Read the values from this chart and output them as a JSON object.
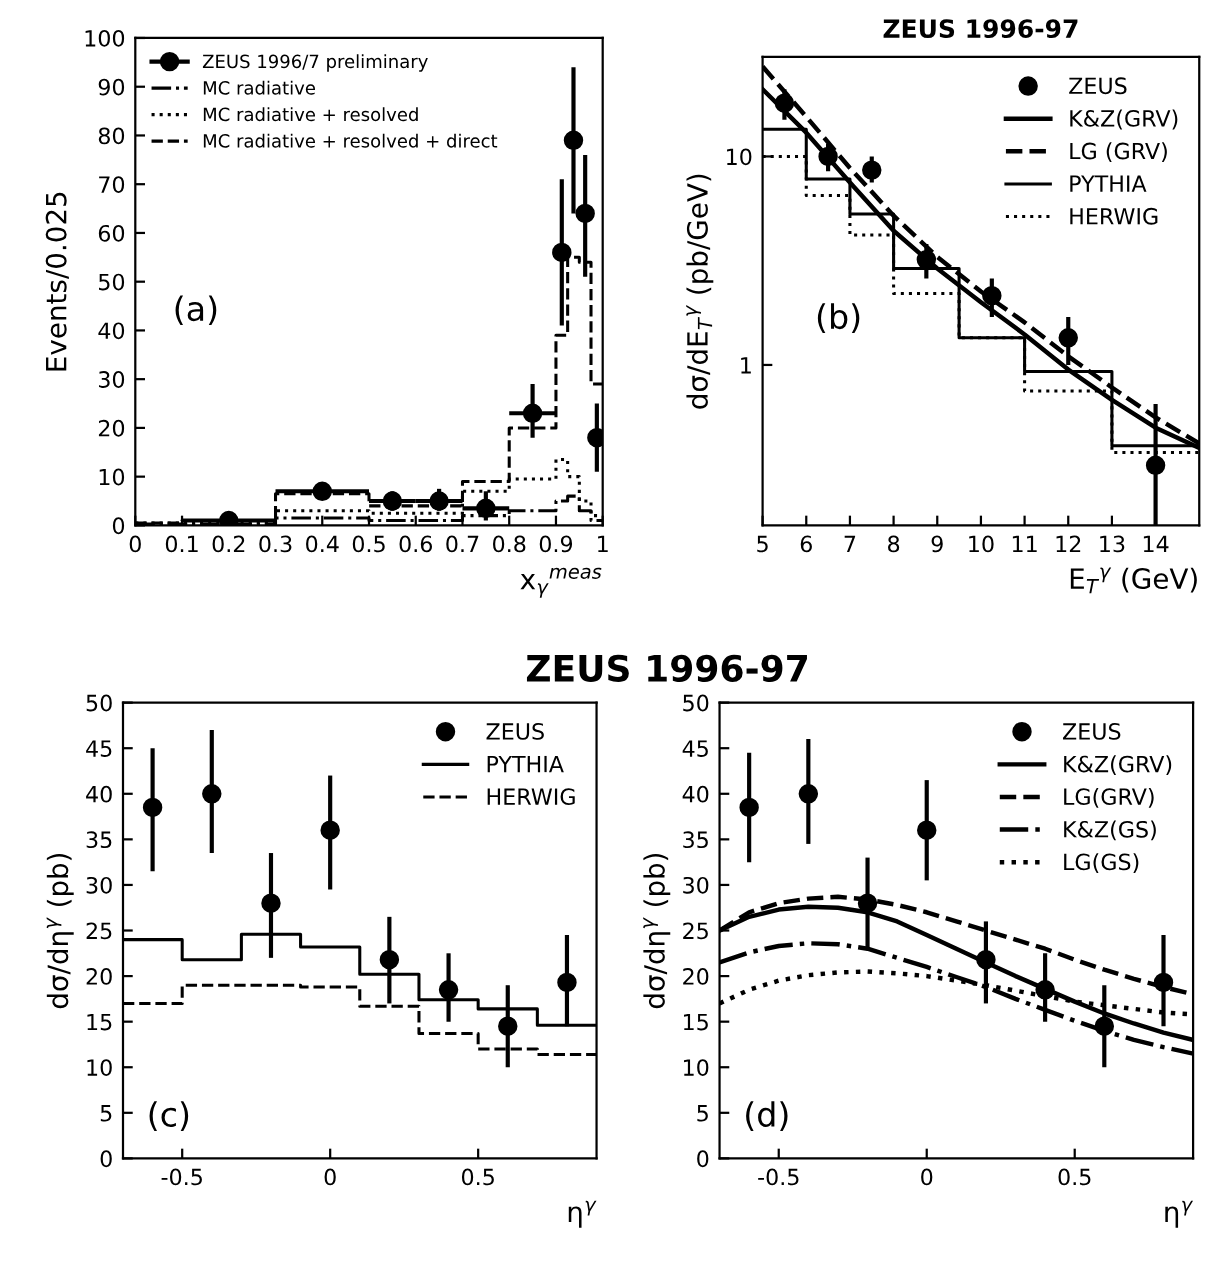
{
  "chart_data": [
    {
      "type": "step",
      "xlabel": "x$_{γ}$$^{meas}$",
      "ylabel": "Events/0.025",
      "xlim": [
        0,
        1
      ],
      "ylim": [
        0,
        100
      ],
      "xticks": [
        0,
        0.1,
        0.2,
        0.3,
        0.4,
        0.5,
        0.6,
        0.7,
        0.8,
        0.9,
        1
      ],
      "yticks": [
        0,
        10,
        20,
        30,
        40,
        50,
        60,
        70,
        80,
        90,
        100
      ],
      "legend": "top left",
      "annotations": [
        "(a)"
      ],
      "series": [
        {
          "name": "ZEUS 1996/7 preliminary",
          "type": "scatter",
          "marker": "circle",
          "color": "#000000",
          "x": [
            0.2,
            0.4,
            0.55,
            0.65,
            0.75,
            0.85,
            0.9125,
            0.9375,
            0.9625,
            0.9875
          ],
          "values": [
            1,
            7,
            5,
            5,
            3.5,
            23,
            56,
            79,
            64,
            18
          ],
          "errors": [
            null,
            [
              6,
              8.5
            ],
            [
              3,
              7
            ],
            [
              3,
              7.5
            ],
            [
              1,
              7
            ],
            [
              18,
              29
            ],
            [
              41,
              71
            ],
            [
              64,
              94
            ],
            [
              51,
              76
            ],
            [
              11,
              25
            ]
          ],
          "xerrors": [
            0.1,
            0.1,
            0.05,
            0.05,
            0.05,
            0.05,
            0.0125,
            0.0125,
            0.0125,
            0.0125
          ]
        },
        {
          "name": "MC radiative",
          "line_style": "dashdot",
          "color": "#000000",
          "x": [
            0,
            0.1,
            0.3,
            0.5,
            0.7,
            0.8,
            0.9,
            0.925,
            0.95,
            0.975,
            1
          ],
          "values": [
            0.3,
            0.3,
            1.5,
            1,
            2,
            3,
            5,
            6,
            3,
            1,
            1
          ]
        },
        {
          "name": "MC radiative + resolved",
          "line_style": "dotted",
          "color": "#000000",
          "x": [
            0,
            0.1,
            0.3,
            0.5,
            0.7,
            0.8,
            0.9,
            0.925,
            0.95,
            0.975,
            1
          ],
          "values": [
            0.5,
            0.5,
            3,
            2.5,
            7,
            9.5,
            13.5,
            10,
            5,
            2,
            2
          ]
        },
        {
          "name": "MC radiative + resolved + direct",
          "line_style": "dashed",
          "color": "#000000",
          "x": [
            0,
            0.1,
            0.3,
            0.5,
            0.7,
            0.8,
            0.9,
            0.925,
            0.95,
            0.975,
            1
          ],
          "values": [
            0.5,
            1,
            6.5,
            4,
            9,
            20,
            39,
            55,
            54,
            29,
            29
          ]
        }
      ]
    },
    {
      "type": "line",
      "title": "ZEUS 1996-97",
      "xlabel": "E$_{T}$$^{γ}$ (GeV)",
      "ylabel": "dσ/dE$_{T}$$^{γ}$ (pb/GeV)",
      "log": "y",
      "xlim": [
        5,
        15
      ],
      "ylim": [
        0.17,
        30
      ],
      "xticks": [
        5,
        6,
        7,
        8,
        9,
        10,
        11,
        12,
        13,
        14
      ],
      "yticks": [
        1,
        10
      ],
      "legend": "top right",
      "annotations": [
        "(b)"
      ],
      "series": [
        {
          "name": "ZEUS",
          "type": "scatter",
          "marker": "circle",
          "color": "#000000",
          "x": [
            5.5,
            6.5,
            7.5,
            8.75,
            10.25,
            12,
            14
          ],
          "values": [
            18,
            10,
            8.6,
            3.2,
            2.15,
            1.35,
            0.33
          ],
          "errors": [
            [
              15,
              21
            ],
            [
              8.5,
              11.5
            ],
            [
              7.5,
              10
            ],
            [
              2.6,
              3.8
            ],
            [
              1.7,
              2.6
            ],
            [
              1.0,
              1.7
            ],
            [
              0.17,
              0.65
            ]
          ]
        },
        {
          "name": "K&Z(GRV)",
          "line_style": "solid",
          "color": "#000000",
          "x": [
            5,
            6,
            7,
            8,
            9,
            10,
            11,
            12,
            13,
            14,
            15
          ],
          "values": [
            21,
            13,
            7.5,
            4.4,
            2.9,
            2.0,
            1.4,
            0.95,
            0.68,
            0.5,
            0.4
          ]
        },
        {
          "name": "LG (GRV)",
          "line_style": "dashed",
          "color": "#000000",
          "x": [
            5,
            6,
            7,
            8,
            9,
            10,
            11,
            12,
            13,
            14,
            15
          ],
          "values": [
            27,
            15.5,
            8.8,
            5.2,
            3.3,
            2.25,
            1.6,
            1.1,
            0.78,
            0.56,
            0.42
          ]
        },
        {
          "name": "PYTHIA",
          "type": "step",
          "line_style": "solid",
          "color": "#000000",
          "x": [
            5,
            6,
            7,
            8,
            9.5,
            11,
            13,
            15
          ],
          "values": [
            13.5,
            7.8,
            5.3,
            2.9,
            1.35,
            0.93,
            0.41,
            0.41
          ]
        },
        {
          "name": "HERWIG",
          "type": "step",
          "line_style": "dotted",
          "color": "#000000",
          "x": [
            5,
            6,
            7,
            8,
            9.5,
            11,
            13,
            15
          ],
          "values": [
            10,
            6.5,
            4.2,
            2.2,
            1.35,
            0.75,
            0.38,
            0.38
          ]
        }
      ]
    },
    {
      "type": "step",
      "title": "ZEUS 1996-97",
      "xlabel": "η$^{γ}$",
      "ylabel": "dσ/dη$^{γ}$ (pb)",
      "xlim": [
        -0.7,
        0.9
      ],
      "ylim": [
        0,
        50
      ],
      "xticks": [
        -0.5,
        0,
        0.5
      ],
      "yticks": [
        0,
        5,
        10,
        15,
        20,
        25,
        30,
        35,
        40,
        45,
        50
      ],
      "legend": "top right",
      "annotations": [
        "(c)"
      ],
      "series": [
        {
          "name": "ZEUS",
          "type": "scatter",
          "marker": "circle",
          "color": "#000000",
          "x": [
            -0.6,
            -0.4,
            -0.2,
            0,
            0.2,
            0.4,
            0.6,
            0.8
          ],
          "values": [
            38.5,
            40,
            28,
            36,
            21.8,
            18.5,
            14.5,
            19.3
          ],
          "errors": [
            [
              31.5,
              45
            ],
            [
              33.5,
              47
            ],
            [
              22,
              33.5
            ],
            [
              29.5,
              42
            ],
            [
              17,
              26.5
            ],
            [
              15,
              22.5
            ],
            [
              10,
              19
            ],
            [
              14.5,
              24.5
            ]
          ]
        },
        {
          "name": "PYTHIA",
          "line_style": "solid",
          "color": "#000000",
          "x": [
            -0.7,
            -0.5,
            -0.3,
            -0.1,
            0.1,
            0.3,
            0.5,
            0.7,
            0.9
          ],
          "values": [
            24,
            21.8,
            24.6,
            23.2,
            20.2,
            17.4,
            16.4,
            14.6,
            14.6
          ]
        },
        {
          "name": "HERWIG",
          "line_style": "dashed",
          "color": "#000000",
          "x": [
            -0.7,
            -0.5,
            -0.3,
            -0.1,
            0.1,
            0.3,
            0.5,
            0.7,
            0.9
          ],
          "values": [
            17,
            19,
            19,
            18.8,
            16.7,
            13.7,
            12,
            11.4,
            11.4
          ]
        }
      ]
    },
    {
      "type": "line",
      "xlabel": "η$^{γ}$",
      "ylabel": "dσ/dη$^{γ}$ (pb)",
      "xlim": [
        -0.7,
        0.9
      ],
      "ylim": [
        0,
        50
      ],
      "xticks": [
        -0.5,
        0,
        0.5
      ],
      "yticks": [
        0,
        5,
        10,
        15,
        20,
        25,
        30,
        35,
        40,
        45,
        50
      ],
      "legend": "top right",
      "annotations": [
        "(d)"
      ],
      "series": [
        {
          "name": "ZEUS",
          "type": "scatter",
          "marker": "circle",
          "color": "#000000",
          "x": [
            -0.6,
            -0.4,
            -0.2,
            0,
            0.2,
            0.4,
            0.6,
            0.8
          ],
          "values": [
            38.5,
            40,
            28,
            36,
            21.8,
            18.5,
            14.5,
            19.3
          ],
          "errors": [
            [
              32.5,
              44.5
            ],
            [
              34.5,
              46
            ],
            [
              23,
              33
            ],
            [
              30.5,
              41.5
            ],
            [
              17,
              26
            ],
            [
              15,
              22.5
            ],
            [
              10,
              19
            ],
            [
              14.5,
              24.5
            ]
          ]
        },
        {
          "name": "K&Z(GRV)",
          "line_style": "solid",
          "color": "#000000",
          "x": [
            -0.7,
            -0.6,
            -0.5,
            -0.4,
            -0.3,
            -0.2,
            -0.1,
            0,
            0.1,
            0.2,
            0.3,
            0.4,
            0.5,
            0.6,
            0.7,
            0.8,
            0.9
          ],
          "values": [
            25,
            26.5,
            27.3,
            27.6,
            27.5,
            27,
            26,
            24.5,
            23,
            21.5,
            20,
            18.6,
            17.2,
            15.9,
            14.8,
            13.8,
            13
          ]
        },
        {
          "name": "LG(GRV)",
          "line_style": "dashed",
          "color": "#000000",
          "x": [
            -0.7,
            -0.6,
            -0.5,
            -0.4,
            -0.3,
            -0.2,
            -0.1,
            0,
            0.1,
            0.2,
            0.3,
            0.4,
            0.5,
            0.6,
            0.7,
            0.8,
            0.9
          ],
          "values": [
            25,
            27,
            28,
            28.5,
            28.7,
            28.4,
            27.8,
            27,
            26,
            25,
            24,
            23,
            21.8,
            20.7,
            19.7,
            18.8,
            18
          ]
        },
        {
          "name": "K&Z(GS)",
          "line_style": "dashdot",
          "color": "#000000",
          "x": [
            -0.7,
            -0.6,
            -0.5,
            -0.4,
            -0.3,
            -0.2,
            -0.1,
            0,
            0.1,
            0.2,
            0.3,
            0.4,
            0.5,
            0.6,
            0.7,
            0.8,
            0.9
          ],
          "values": [
            21.5,
            22.6,
            23.3,
            23.6,
            23.5,
            23,
            22,
            21,
            19.9,
            18.8,
            17.5,
            16.3,
            15.1,
            14,
            13,
            12.2,
            11.5
          ]
        },
        {
          "name": "LG(GS)",
          "line_style": "dotted",
          "color": "#000000",
          "x": [
            -0.7,
            -0.6,
            -0.5,
            -0.4,
            -0.3,
            -0.2,
            -0.1,
            0,
            0.1,
            0.2,
            0.3,
            0.4,
            0.5,
            0.6,
            0.7,
            0.8,
            0.9
          ],
          "values": [
            17,
            18.5,
            19.5,
            20.1,
            20.4,
            20.5,
            20.3,
            20,
            19.5,
            19,
            18.4,
            17.8,
            17.2,
            16.8,
            16.4,
            16,
            15.8
          ]
        }
      ]
    }
  ]
}
